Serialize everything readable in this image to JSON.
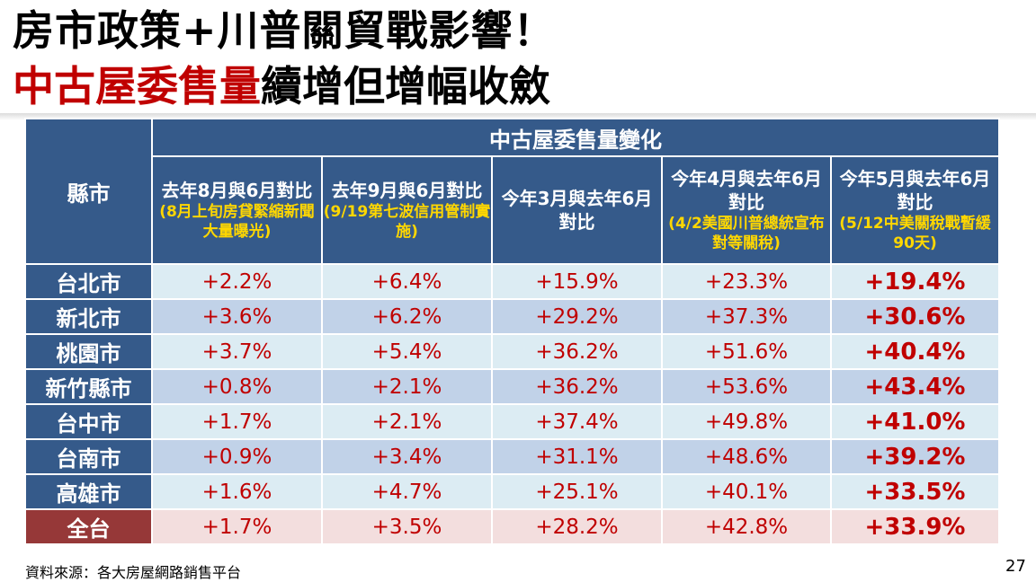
{
  "title_line1": "房市政策+川普關貿戰影響！",
  "title_line2_red": "中古屋委售量",
  "title_line2_black": "續增但增幅收斂",
  "table": {
    "county_header": "縣市",
    "group_header": "中古屋委售量變化",
    "columns": [
      {
        "main": "去年8月與6月對比",
        "sub": "(8月上旬房貸緊縮新聞大量曝光)"
      },
      {
        "main": "去年9月與6月對比",
        "sub": "(9/19第七波信用管制實施)"
      },
      {
        "main": "今年3月與去年6月對比",
        "sub": ""
      },
      {
        "main": "今年4月與去年6月對比",
        "sub": "(4/2美國川普總統宣布對等關稅)"
      },
      {
        "main": "今年5月與去年6月對比",
        "sub": "(5/12中美關稅戰暫緩90天)"
      }
    ],
    "rows": [
      {
        "county": "台北市",
        "values": [
          "+2.2%",
          "+6.4%",
          "+15.9%",
          "+23.3%",
          "+19.4%"
        ]
      },
      {
        "county": "新北市",
        "values": [
          "+3.6%",
          "+6.2%",
          "+29.2%",
          "+37.3%",
          "+30.6%"
        ]
      },
      {
        "county": "桃園市",
        "values": [
          "+3.7%",
          "+5.4%",
          "+36.2%",
          "+51.6%",
          "+40.4%"
        ]
      },
      {
        "county": "新竹縣市",
        "values": [
          "+0.8%",
          "+2.1%",
          "+36.2%",
          "+53.6%",
          "+43.4%"
        ]
      },
      {
        "county": "台中市",
        "values": [
          "+1.7%",
          "+2.1%",
          "+37.4%",
          "+49.8%",
          "+41.0%"
        ]
      },
      {
        "county": "台南市",
        "values": [
          "+0.9%",
          "+3.4%",
          "+31.1%",
          "+48.6%",
          "+39.2%"
        ]
      },
      {
        "county": "高雄市",
        "values": [
          "+1.6%",
          "+4.7%",
          "+25.1%",
          "+40.1%",
          "+33.5%"
        ]
      },
      {
        "county": "全台",
        "values": [
          "+1.7%",
          "+3.5%",
          "+28.2%",
          "+42.8%",
          "+33.9%"
        ]
      }
    ]
  },
  "source": "資料來源：各大房屋網路銷售平台",
  "page_number": "27"
}
